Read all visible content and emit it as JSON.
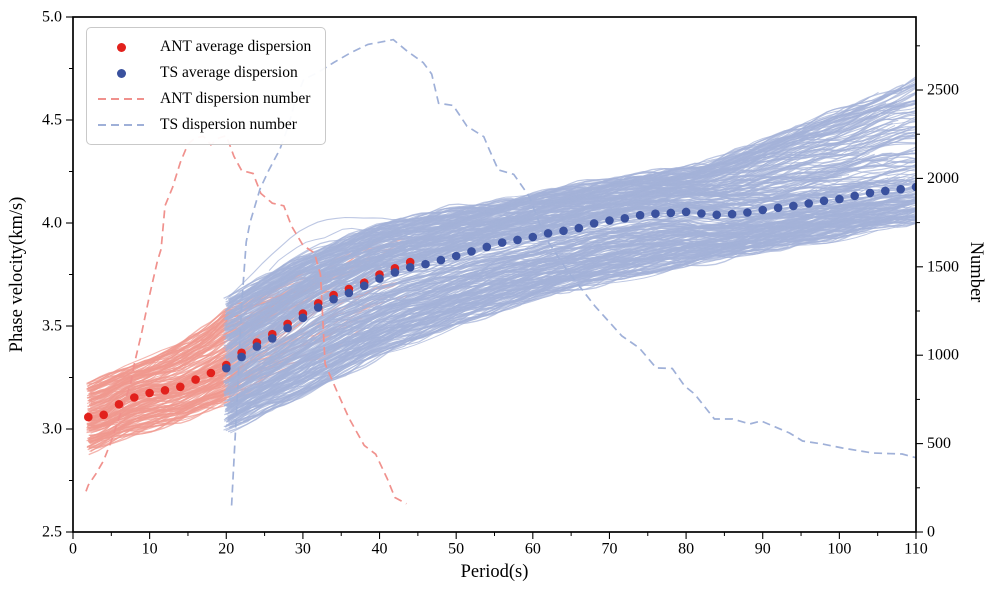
{
  "chart_data": {
    "type": "line",
    "title": "",
    "xlabel": "Period(s)",
    "ylabel_left": "Phase velocity(km/s)",
    "ylabel_right": "Number",
    "grid": false,
    "legend_position": "upper-left",
    "x_axis": {
      "min": 0,
      "max": 110,
      "minor_step": 5,
      "tick_values": [
        0,
        10,
        20,
        30,
        40,
        50,
        60,
        70,
        80,
        90,
        100,
        110
      ],
      "tick_labels": [
        "0",
        "10",
        "20",
        "30",
        "40",
        "50",
        "60",
        "70",
        "80",
        "90",
        "100",
        "110"
      ]
    },
    "y_left_axis": {
      "min": 2.5,
      "max": 5.0,
      "minor_step": 0.25,
      "tick_values": [
        2.5,
        3.0,
        3.5,
        4.0,
        4.5,
        5.0
      ],
      "tick_labels": [
        "2.5",
        "3.0",
        "3.5",
        "4.0",
        "4.5",
        "5.0"
      ]
    },
    "y_right_axis": {
      "min": 0,
      "max": 2913,
      "minor_step": 250,
      "tick_values": [
        0,
        500,
        1000,
        1500,
        2000,
        2500
      ],
      "tick_labels": [
        "0",
        "500",
        "1000",
        "1500",
        "2000",
        "2500"
      ]
    },
    "legend": {
      "items": [
        {
          "label": "ANT average dispersion",
          "marker": "dot",
          "color": "#e2211c"
        },
        {
          "label": "TS average dispersion",
          "marker": "dot",
          "color": "#3a519e"
        },
        {
          "label": "ANT dispersion number",
          "marker": "dashes",
          "color": "#f0918d"
        },
        {
          "label": "TS dispersion number",
          "marker": "dashes",
          "color": "#9fb0d8"
        }
      ]
    },
    "series": {
      "ant_average": {
        "name": "ANT average dispersion",
        "color": "#e2211c",
        "units": "km/s",
        "x": [
          2,
          4,
          6,
          8,
          10,
          12,
          14,
          16,
          18,
          20,
          22,
          24,
          26,
          28,
          30,
          32,
          34,
          36,
          38,
          40,
          42,
          44
        ],
        "v": [
          3.058,
          3.069,
          3.12,
          3.153,
          3.175,
          3.188,
          3.205,
          3.24,
          3.272,
          3.31,
          3.37,
          3.42,
          3.46,
          3.51,
          3.56,
          3.61,
          3.65,
          3.68,
          3.71,
          3.75,
          3.78,
          3.81
        ]
      },
      "ts_average": {
        "name": "TS average dispersion",
        "color": "#3a519e",
        "units": "km/s",
        "x": [
          20,
          22,
          24,
          26,
          28,
          30,
          32,
          34,
          36,
          38,
          40,
          42,
          44,
          46,
          48,
          50,
          52,
          54,
          56,
          58,
          60,
          62,
          64,
          66,
          68,
          70,
          72,
          74,
          76,
          78,
          80,
          82,
          84,
          86,
          88,
          90,
          92,
          94,
          96,
          98,
          100,
          102,
          104,
          106,
          108,
          110
        ],
        "v": [
          3.295,
          3.35,
          3.4,
          3.44,
          3.49,
          3.54,
          3.59,
          3.63,
          3.66,
          3.695,
          3.73,
          3.76,
          3.785,
          3.8,
          3.82,
          3.84,
          3.862,
          3.884,
          3.905,
          3.918,
          3.932,
          3.95,
          3.962,
          3.975,
          3.998,
          4.012,
          4.023,
          4.038,
          4.045,
          4.049,
          4.054,
          4.046,
          4.04,
          4.043,
          4.051,
          4.063,
          4.074,
          4.083,
          4.095,
          4.108,
          4.116,
          4.132,
          4.146,
          4.156,
          4.164,
          4.175
        ]
      },
      "ant_number": {
        "name": "ANT dispersion number",
        "color": "#f0918d",
        "units": "count",
        "points": [
          [
            1.7,
            230
          ],
          [
            2,
            265
          ],
          [
            3,
            330
          ],
          [
            4,
            405
          ],
          [
            5,
            515
          ],
          [
            6,
            645
          ],
          [
            7,
            770
          ],
          [
            7.5,
            835
          ],
          [
            8,
            950
          ],
          [
            9,
            1135
          ],
          [
            10,
            1340
          ],
          [
            11,
            1530
          ],
          [
            11.5,
            1600
          ],
          [
            12,
            1845
          ],
          [
            13,
            1950
          ],
          [
            14,
            2090
          ],
          [
            15,
            2195
          ],
          [
            16,
            2230
          ],
          [
            17,
            2238
          ],
          [
            18,
            2190
          ],
          [
            19,
            2228
          ],
          [
            20,
            2242
          ],
          [
            21,
            2125
          ],
          [
            22,
            2045
          ],
          [
            23.5,
            2028
          ],
          [
            24.5,
            1915
          ],
          [
            26,
            1860
          ],
          [
            27.5,
            1845
          ],
          [
            28.5,
            1732
          ],
          [
            30,
            1622
          ],
          [
            31.5,
            1578
          ],
          [
            32.3,
            1455
          ],
          [
            32.9,
            950
          ],
          [
            34.5,
            790
          ],
          [
            36,
            645
          ],
          [
            38,
            490
          ],
          [
            39.5,
            440
          ],
          [
            41,
            302
          ],
          [
            42,
            195
          ],
          [
            43.5,
            160
          ]
        ]
      },
      "ts_number": {
        "name": "TS dispersion number",
        "color": "#9fb0d8",
        "units": "count",
        "points": [
          [
            20.7,
            150
          ],
          [
            21,
            400
          ],
          [
            21.5,
            820
          ],
          [
            22,
            1280
          ],
          [
            22.6,
            1640
          ],
          [
            23.1,
            1750
          ],
          [
            24.4,
            1940
          ],
          [
            25.5,
            2042
          ],
          [
            27,
            2165
          ],
          [
            28.1,
            2296
          ],
          [
            29,
            2438
          ],
          [
            30.1,
            2560
          ],
          [
            32,
            2600
          ],
          [
            34,
            2655
          ],
          [
            36.2,
            2710
          ],
          [
            38.5,
            2758
          ],
          [
            40,
            2770
          ],
          [
            41.8,
            2785
          ],
          [
            43.6,
            2720
          ],
          [
            45.7,
            2655
          ],
          [
            46.8,
            2590
          ],
          [
            47.7,
            2425
          ],
          [
            49.6,
            2413
          ],
          [
            51.4,
            2296
          ],
          [
            53.6,
            2236
          ],
          [
            54.3,
            2165
          ],
          [
            55.5,
            2048
          ],
          [
            57.5,
            2023
          ],
          [
            59.5,
            1900
          ],
          [
            61.5,
            1675
          ],
          [
            64.5,
            1478
          ],
          [
            68.1,
            1278
          ],
          [
            71.6,
            1110
          ],
          [
            73.9,
            1041
          ],
          [
            76.1,
            928
          ],
          [
            78.2,
            925
          ],
          [
            79.8,
            826
          ],
          [
            81.1,
            781
          ],
          [
            83.7,
            639
          ],
          [
            86.1,
            639
          ],
          [
            88.3,
            611
          ],
          [
            89.8,
            628
          ],
          [
            93.5,
            560
          ],
          [
            95.2,
            515
          ],
          [
            97.8,
            498
          ],
          [
            100.4,
            475
          ],
          [
            104.3,
            447
          ],
          [
            108.2,
            441
          ],
          [
            110,
            420
          ]
        ]
      }
    },
    "bands": {
      "ant": {
        "name": "ANT dispersion curves envelope",
        "color": "#f0988f",
        "period_range": [
          2,
          45
        ],
        "p": [
          2,
          6,
          10,
          14,
          18,
          20,
          24,
          28,
          33,
          38,
          44
        ],
        "top": [
          3.21,
          3.27,
          3.33,
          3.41,
          3.5,
          3.57,
          3.63,
          3.71,
          3.78,
          3.86,
          3.96
        ],
        "bottom": [
          2.9,
          2.96,
          3.005,
          3.05,
          3.11,
          3.14,
          3.22,
          3.3,
          3.38,
          3.47,
          3.58
        ]
      },
      "ts": {
        "name": "TS dispersion curves envelope",
        "color": "#a4b2d8",
        "period_range": [
          20,
          110
        ],
        "p": [
          20,
          25,
          30,
          35,
          40,
          50,
          60,
          70,
          80,
          90,
          100,
          110
        ],
        "top": [
          3.62,
          3.73,
          3.83,
          3.91,
          3.98,
          4.06,
          4.13,
          4.2,
          4.26,
          4.31,
          4.36,
          4.41
        ],
        "bottom": [
          3.0,
          3.09,
          3.17,
          3.27,
          3.36,
          3.52,
          3.63,
          3.73,
          3.8,
          3.87,
          3.94,
          4.01
        ]
      }
    }
  }
}
